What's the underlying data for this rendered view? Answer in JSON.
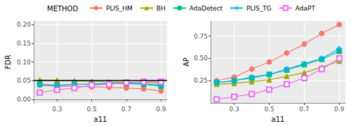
{
  "chart_data": [
    {
      "type": "line",
      "xlabel": "a11",
      "ylabel": "FDR",
      "grid": true,
      "legend": "top",
      "legend_title": "METHOD",
      "reference_line": 0.05,
      "x": [
        0.2,
        0.3,
        0.4,
        0.5,
        0.6,
        0.7,
        0.8,
        0.9
      ],
      "xlim": [
        0.165,
        0.935
      ],
      "xticks": [
        0.3,
        0.5,
        0.7,
        0.9
      ],
      "ylim": [
        -0.01,
        0.21
      ],
      "yticks": [
        {
          "value": 0,
          "label": "0.00"
        },
        {
          "value": 0.05,
          "label": "0.05"
        },
        {
          "value": 0.1,
          "label": "0.10"
        },
        {
          "value": 0.15,
          "label": "0.15"
        },
        {
          "value": 0.2,
          "label": "0.20"
        }
      ],
      "series": [
        {
          "name": "PLIS_HM",
          "color": "#F8766D",
          "marker": "circle",
          "values": [
            0.038,
            0.035,
            0.035,
            0.033,
            0.032,
            0.03,
            0.028,
            0.022
          ]
        },
        {
          "name": "BH",
          "color": "#A3A500",
          "marker": "triangle",
          "values": [
            0.052,
            0.051,
            0.049,
            0.048,
            0.047,
            0.046,
            0.045,
            0.043
          ]
        },
        {
          "name": "AdaDetect",
          "color": "#00BF7D",
          "marker": "square",
          "values": [
            0.04,
            0.037,
            0.04,
            0.04,
            0.042,
            0.042,
            0.04,
            0.035
          ]
        },
        {
          "name": "PLIS_TG",
          "color": "#00B0F6",
          "marker": "plus",
          "values": [
            0.04,
            0.038,
            0.04,
            0.041,
            0.043,
            0.044,
            0.041,
            0.038
          ]
        },
        {
          "name": "AdaPT",
          "color": "#E76BF3",
          "marker": "square_cross",
          "values": [
            0.018,
            0.025,
            0.03,
            0.038,
            0.04,
            0.045,
            0.047,
            0.047
          ]
        }
      ]
    },
    {
      "type": "line",
      "xlabel": "a11",
      "ylabel": "AP",
      "grid": true,
      "x": [
        0.2,
        0.3,
        0.4,
        0.5,
        0.6,
        0.7,
        0.8,
        0.9
      ],
      "xlim": [
        0.165,
        0.935
      ],
      "xticks": [
        0.3,
        0.5,
        0.7,
        0.9
      ],
      "ylim": [
        0,
        0.92
      ],
      "yticks": [
        0.25,
        {
          "value": 0.5,
          "label": "0.50"
        },
        0.75
      ],
      "series": [
        {
          "name": "PLIS_HM",
          "color": "#F8766D",
          "marker": "circle",
          "values": [
            0.25,
            0.29,
            0.38,
            0.46,
            0.56,
            0.66,
            0.78,
            0.88
          ]
        },
        {
          "name": "BH",
          "color": "#A3A500",
          "marker": "triangle",
          "values": [
            0.21,
            0.22,
            0.24,
            0.26,
            0.3,
            0.34,
            0.4,
            0.47
          ]
        },
        {
          "name": "AdaDetect",
          "color": "#00BF7D",
          "marker": "square",
          "values": [
            0.23,
            0.25,
            0.28,
            0.32,
            0.37,
            0.43,
            0.49,
            0.58
          ]
        },
        {
          "name": "PLIS_TG",
          "color": "#00B0F6",
          "marker": "plus",
          "values": [
            0.23,
            0.25,
            0.29,
            0.32,
            0.38,
            0.44,
            0.5,
            0.61
          ]
        },
        {
          "name": "AdaPT",
          "color": "#E76BF3",
          "marker": "square_cross",
          "values": [
            0.04,
            0.07,
            0.1,
            0.15,
            0.21,
            0.28,
            0.38,
            0.5
          ]
        }
      ]
    }
  ]
}
